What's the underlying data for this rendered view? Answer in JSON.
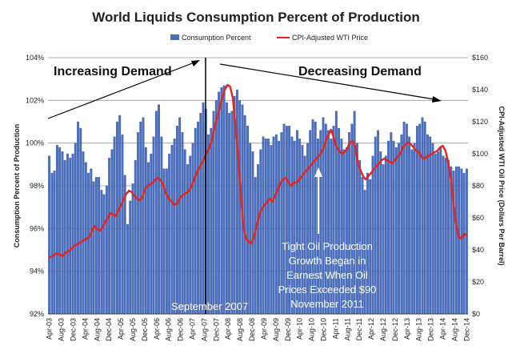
{
  "chart_data": {
    "type": "bar",
    "title": "World Liquids Consumption Percent of Production",
    "legend": {
      "placement": "top",
      "entries": [
        "Consumption Percent",
        "CPI-Adjusted WTI Price"
      ]
    },
    "ylabel_left": "Consumption Percent of Production",
    "ylabel_right": "CPI-Adjusted WTI Oil Price (Dollars Per Barrel)",
    "y_left_ticks": [
      "92%",
      "94%",
      "96%",
      "98%",
      "100%",
      "102%",
      "104%"
    ],
    "y_right_ticks": [
      "$0",
      "$20",
      "$40",
      "$60",
      "$80",
      "$100",
      "$120",
      "$140",
      "$160"
    ],
    "ylim_left": [
      92,
      104
    ],
    "ylim_right": [
      0,
      160
    ],
    "x_tick_labels": [
      "Apr-03",
      "Aug-03",
      "Dec-03",
      "Apr-04",
      "Aug-04",
      "Dec-04",
      "Apr-05",
      "Aug-05",
      "Dec-05",
      "Apr-06",
      "Aug-06",
      "Dec-06",
      "Apr-07",
      "Aug-07",
      "Dec-07",
      "Apr-08",
      "Aug-08",
      "Dec-08",
      "Apr-09",
      "Aug-09",
      "Dec-09",
      "Apr-10",
      "Aug-10",
      "Dec-10",
      "Apr-11",
      "Aug-11",
      "Dec-11",
      "Apr-12",
      "Aug-12",
      "Dec-12",
      "Apr-13",
      "Aug-13",
      "Dec-13",
      "Apr-14",
      "Aug-14",
      "Dec-14"
    ],
    "grid": "horizontal",
    "series": [
      {
        "name": "Consumption Percent",
        "type": "bar",
        "axis": "left",
        "values": [
          99.4,
          98.6,
          98.7,
          99.9,
          99.8,
          99.6,
          99.2,
          99.5,
          99.3,
          99.5,
          100.0,
          101.0,
          100.7,
          99.6,
          99.1,
          98.6,
          98.8,
          98.2,
          98.4,
          98.4,
          97.8,
          97.6,
          98.0,
          99.3,
          99.7,
          100.3,
          101.0,
          101.3,
          100.4,
          98.5,
          96.2,
          97.3,
          98.1,
          99.2,
          100.5,
          101.0,
          101.2,
          99.8,
          99.1,
          99.5,
          100.3,
          101.5,
          101.8,
          100.3,
          98.8,
          98.8,
          99.5,
          99.9,
          100.2,
          100.8,
          101.2,
          100.5,
          99.7,
          99.0,
          99.4,
          100.0,
          100.7,
          101.0,
          101.4,
          101.9,
          101.6,
          100.4,
          100.7,
          101.5,
          102.0,
          102.4,
          102.6,
          102.7,
          101.9,
          101.4,
          101.5,
          102.2,
          102.5,
          102.0,
          101.8,
          101.3,
          100.8,
          100.0,
          99.6,
          98.4,
          99.0,
          99.7,
          100.3,
          100.2,
          100.2,
          99.9,
          100.3,
          100.4,
          100.1,
          100.5,
          100.9,
          100.8,
          100.8,
          100.3,
          100.1,
          100.6,
          100.2,
          99.9,
          99.4,
          100.0,
          100.6,
          101.1,
          101.0,
          100.2,
          100.6,
          101.2,
          100.9,
          100.6,
          100.2,
          100.8,
          101.5,
          100.7,
          100.2,
          99.7,
          99.8,
          100.5,
          100.9,
          101.5,
          100.0,
          99.2,
          98.4,
          97.8,
          98.6,
          98.3,
          99.4,
          100.3,
          100.6,
          99.6,
          99.0,
          99.4,
          100.1,
          100.5,
          100.1,
          99.8,
          100.0,
          100.4,
          101.0,
          100.9,
          100.3,
          99.7,
          100.0,
          100.8,
          100.9,
          101.2,
          101.0,
          100.4,
          100.3,
          100.0,
          99.5,
          99.6,
          99.8,
          99.4,
          99.3,
          99.2,
          98.9,
          98.7,
          98.9,
          98.9,
          98.8,
          98.6,
          98.8
        ]
      },
      {
        "name": "CPI-Adjusted WTI Price",
        "type": "line",
        "axis": "right",
        "values": [
          35,
          36,
          37,
          38,
          37,
          36,
          38,
          39,
          40,
          42,
          43,
          44,
          45,
          46,
          47,
          48,
          52,
          55,
          53,
          52,
          54,
          57,
          60,
          63,
          62,
          61,
          65,
          68,
          72,
          75,
          77,
          76,
          74,
          72,
          71,
          73,
          78,
          80,
          81,
          82,
          84,
          85,
          83,
          80,
          75,
          72,
          70,
          68,
          69,
          72,
          74,
          75,
          76,
          78,
          82,
          86,
          90,
          93,
          96,
          100,
          103,
          108,
          115,
          122,
          128,
          135,
          140,
          143,
          142,
          135,
          118,
          100,
          75,
          55,
          47,
          45,
          44,
          48,
          55,
          62,
          66,
          68,
          70,
          72,
          70,
          74,
          78,
          82,
          84,
          85,
          82,
          80,
          82,
          82,
          84,
          86,
          88,
          90,
          92,
          94,
          96,
          98,
          100,
          103,
          108,
          112,
          115,
          110,
          104,
          102,
          100,
          101,
          103,
          107,
          108,
          105,
          95,
          90,
          86,
          84,
          86,
          88,
          90,
          92,
          94,
          96,
          97,
          96,
          95,
          94,
          96,
          98,
          100,
          104,
          106,
          107,
          106,
          104,
          102,
          101,
          98,
          97,
          98,
          99,
          100,
          101,
          102,
          104,
          105,
          102,
          95,
          85,
          70,
          56,
          48,
          47,
          50,
          49
        ]
      }
    ]
  },
  "annotations": {
    "increasing": "Increasing Demand",
    "decreasing": "Decreasing Demand",
    "september": "September 2007",
    "tight_oil": [
      "Tight Oil Production",
      "Growth Began in",
      "Earnest When Oil",
      "Prices Exceeded $90",
      "November 2011"
    ]
  },
  "colors": {
    "bar": "#4a6fc0",
    "bar_edge": "#2f4f9a",
    "line": "#e8231b",
    "grid": "#9a9a9a"
  }
}
